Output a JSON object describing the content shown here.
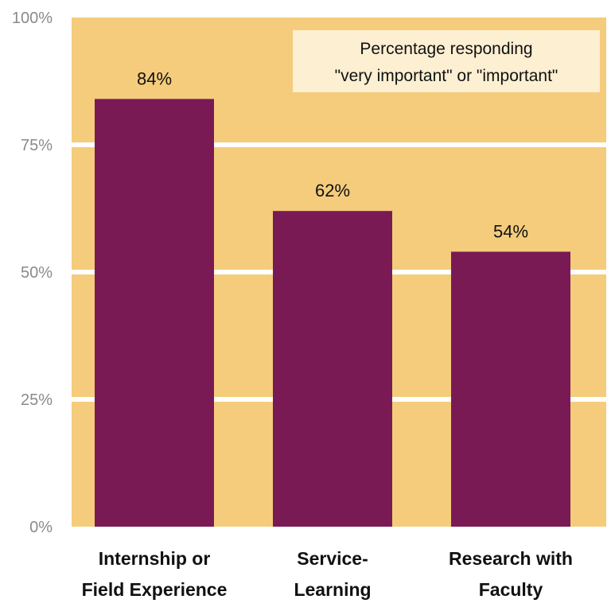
{
  "chart_data": {
    "type": "bar",
    "categories": [
      [
        "Internship or",
        "Field Experience"
      ],
      [
        "Service-",
        "Learning"
      ],
      [
        "Research with",
        "Faculty"
      ]
    ],
    "values": [
      84,
      62,
      54
    ],
    "value_labels": [
      "84%",
      "62%",
      "54%"
    ],
    "ylim": [
      0,
      100
    ],
    "yticks": [
      0,
      25,
      50,
      75,
      100
    ],
    "ytick_labels": [
      "0%",
      "25%",
      "50%",
      "75%",
      "100%"
    ],
    "annotation": [
      "Percentage responding",
      "\"very important\" or \"important\""
    ],
    "legend_position": "top-right",
    "grid": true,
    "colors": {
      "plot_background": "#F4CC7C",
      "bar": "#7A1A55",
      "gridline": "#FFFFFF",
      "annotation_box": "#FDEFD2",
      "tick_text": "#8A8A8A",
      "label_text": "#111111"
    }
  }
}
